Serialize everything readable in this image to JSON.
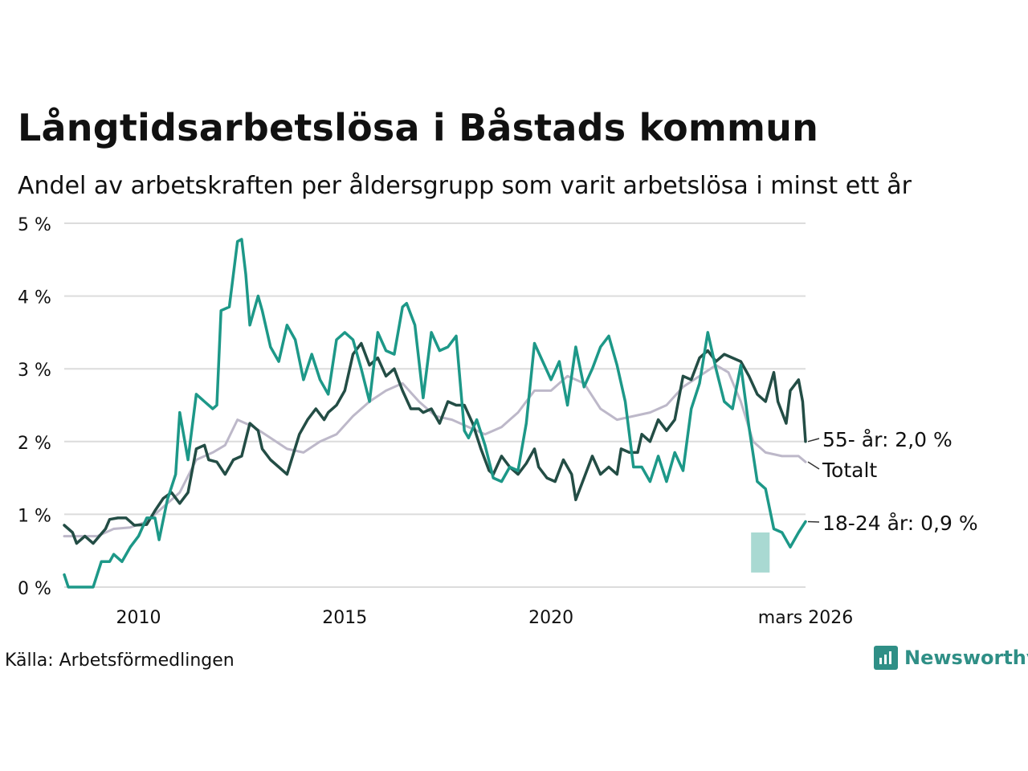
{
  "title": "Långtidsarbetslösa i Båstads kommun",
  "subtitle": "Andel av arbetskraften per åldersgrupp som varit arbetslösa i minst ett år",
  "source": "Källa: Arbetsförmedlingen",
  "brand": "Newsworthy",
  "colors": {
    "age55": "#234d45",
    "total": "#bdb8c9",
    "young": "#1d9888",
    "youngBand": "#93cfc7",
    "grid": "#dcdcdc",
    "brand": "#2f8f86"
  },
  "chart_data": {
    "type": "line",
    "title": "Långtidsarbetslösa i Båstads kommun",
    "ylabel": "",
    "xlabel": "",
    "ylim": [
      0,
      5
    ],
    "xlim": [
      2008.2,
      2026.17
    ],
    "y_ticks": [
      0,
      1,
      2,
      3,
      4,
      5
    ],
    "y_tick_labels": [
      "0 %",
      "1 %",
      "2 %",
      "3 %",
      "4 %",
      "5 %"
    ],
    "x_ticks": [
      2010,
      2015,
      2020,
      2026.17
    ],
    "x_tick_labels": [
      "2010",
      "2015",
      "2020",
      "mars 2026"
    ],
    "end_labels": {
      "age55": "55- år: 2,0 %",
      "total": "Totalt",
      "young": "18-24 år: 0,9 %"
    },
    "series": [
      {
        "name": "55- år",
        "key": "age55",
        "points": [
          [
            2008.2,
            0.85
          ],
          [
            2008.4,
            0.75
          ],
          [
            2008.5,
            0.6
          ],
          [
            2008.7,
            0.7
          ],
          [
            2008.9,
            0.6
          ],
          [
            2009.2,
            0.8
          ],
          [
            2009.3,
            0.93
          ],
          [
            2009.5,
            0.95
          ],
          [
            2009.7,
            0.95
          ],
          [
            2009.9,
            0.85
          ],
          [
            2010.2,
            0.86
          ],
          [
            2010.4,
            1.05
          ],
          [
            2010.6,
            1.22
          ],
          [
            2010.8,
            1.3
          ],
          [
            2011.0,
            1.15
          ],
          [
            2011.2,
            1.3
          ],
          [
            2011.4,
            1.9
          ],
          [
            2011.6,
            1.95
          ],
          [
            2011.7,
            1.75
          ],
          [
            2011.9,
            1.72
          ],
          [
            2012.1,
            1.55
          ],
          [
            2012.3,
            1.75
          ],
          [
            2012.5,
            1.8
          ],
          [
            2012.7,
            2.25
          ],
          [
            2012.9,
            2.15
          ],
          [
            2013.0,
            1.9
          ],
          [
            2013.2,
            1.75
          ],
          [
            2013.4,
            1.65
          ],
          [
            2013.6,
            1.55
          ],
          [
            2013.9,
            2.1
          ],
          [
            2014.1,
            2.3
          ],
          [
            2014.3,
            2.45
          ],
          [
            2014.5,
            2.3
          ],
          [
            2014.6,
            2.4
          ],
          [
            2014.8,
            2.5
          ],
          [
            2015.0,
            2.7
          ],
          [
            2015.2,
            3.2
          ],
          [
            2015.4,
            3.35
          ],
          [
            2015.6,
            3.05
          ],
          [
            2015.8,
            3.15
          ],
          [
            2016.0,
            2.9
          ],
          [
            2016.2,
            3.0
          ],
          [
            2016.4,
            2.7
          ],
          [
            2016.6,
            2.45
          ],
          [
            2016.8,
            2.45
          ],
          [
            2016.9,
            2.4
          ],
          [
            2017.1,
            2.45
          ],
          [
            2017.3,
            2.25
          ],
          [
            2017.5,
            2.55
          ],
          [
            2017.7,
            2.5
          ],
          [
            2017.9,
            2.5
          ],
          [
            2018.1,
            2.25
          ],
          [
            2018.3,
            1.9
          ],
          [
            2018.5,
            1.6
          ],
          [
            2018.6,
            1.55
          ],
          [
            2018.8,
            1.8
          ],
          [
            2019.0,
            1.65
          ],
          [
            2019.2,
            1.55
          ],
          [
            2019.4,
            1.7
          ],
          [
            2019.6,
            1.9
          ],
          [
            2019.7,
            1.65
          ],
          [
            2019.9,
            1.5
          ],
          [
            2020.1,
            1.45
          ],
          [
            2020.3,
            1.75
          ],
          [
            2020.5,
            1.55
          ],
          [
            2020.6,
            1.2
          ],
          [
            2020.8,
            1.5
          ],
          [
            2021.0,
            1.8
          ],
          [
            2021.2,
            1.55
          ],
          [
            2021.4,
            1.65
          ],
          [
            2021.6,
            1.55
          ],
          [
            2021.7,
            1.9
          ],
          [
            2021.9,
            1.85
          ],
          [
            2022.1,
            1.85
          ],
          [
            2022.2,
            2.1
          ],
          [
            2022.4,
            2.0
          ],
          [
            2022.6,
            2.3
          ],
          [
            2022.8,
            2.15
          ],
          [
            2023.0,
            2.3
          ],
          [
            2023.2,
            2.9
          ],
          [
            2023.4,
            2.85
          ],
          [
            2023.6,
            3.15
          ],
          [
            2023.8,
            3.25
          ],
          [
            2024.0,
            3.1
          ],
          [
            2024.2,
            3.2
          ],
          [
            2024.4,
            3.15
          ],
          [
            2024.6,
            3.1
          ],
          [
            2024.8,
            2.9
          ],
          [
            2025.0,
            2.65
          ],
          [
            2025.2,
            2.55
          ],
          [
            2025.4,
            2.95
          ],
          [
            2025.5,
            2.55
          ],
          [
            2025.7,
            2.25
          ],
          [
            2025.8,
            2.7
          ],
          [
            2026.0,
            2.85
          ],
          [
            2026.1,
            2.55
          ],
          [
            2026.17,
            2.0
          ]
        ]
      },
      {
        "name": "Totalt",
        "key": "total",
        "points": [
          [
            2008.2,
            0.7
          ],
          [
            2008.6,
            0.7
          ],
          [
            2009.0,
            0.7
          ],
          [
            2009.4,
            0.8
          ],
          [
            2009.8,
            0.82
          ],
          [
            2010.2,
            0.9
          ],
          [
            2010.6,
            1.1
          ],
          [
            2011.0,
            1.3
          ],
          [
            2011.4,
            1.75
          ],
          [
            2011.8,
            1.85
          ],
          [
            2012.1,
            1.95
          ],
          [
            2012.4,
            2.3
          ],
          [
            2012.8,
            2.2
          ],
          [
            2013.2,
            2.05
          ],
          [
            2013.6,
            1.9
          ],
          [
            2014.0,
            1.85
          ],
          [
            2014.4,
            2.0
          ],
          [
            2014.8,
            2.1
          ],
          [
            2015.2,
            2.35
          ],
          [
            2015.6,
            2.55
          ],
          [
            2016.0,
            2.7
          ],
          [
            2016.4,
            2.8
          ],
          [
            2016.8,
            2.55
          ],
          [
            2017.2,
            2.35
          ],
          [
            2017.6,
            2.3
          ],
          [
            2018.0,
            2.2
          ],
          [
            2018.4,
            2.1
          ],
          [
            2018.8,
            2.2
          ],
          [
            2019.2,
            2.4
          ],
          [
            2019.6,
            2.7
          ],
          [
            2020.0,
            2.7
          ],
          [
            2020.4,
            2.9
          ],
          [
            2020.8,
            2.8
          ],
          [
            2021.2,
            2.45
          ],
          [
            2021.6,
            2.3
          ],
          [
            2022.0,
            2.35
          ],
          [
            2022.4,
            2.4
          ],
          [
            2022.8,
            2.5
          ],
          [
            2023.2,
            2.75
          ],
          [
            2023.6,
            2.9
          ],
          [
            2024.0,
            3.05
          ],
          [
            2024.3,
            2.95
          ],
          [
            2024.6,
            2.55
          ],
          [
            2024.9,
            2.0
          ],
          [
            2025.2,
            1.85
          ],
          [
            2025.6,
            1.8
          ],
          [
            2026.0,
            1.8
          ],
          [
            2026.17,
            1.72
          ]
        ]
      },
      {
        "name": "18-24 år",
        "key": "young",
        "points": [
          [
            2008.2,
            0.17
          ],
          [
            2008.3,
            0.0
          ],
          [
            2008.6,
            0.0
          ],
          [
            2008.9,
            0.0
          ],
          [
            2009.1,
            0.35
          ],
          [
            2009.3,
            0.35
          ],
          [
            2009.4,
            0.45
          ],
          [
            2009.6,
            0.35
          ],
          [
            2009.8,
            0.55
          ],
          [
            2010.0,
            0.7
          ],
          [
            2010.2,
            0.95
          ],
          [
            2010.4,
            0.95
          ],
          [
            2010.5,
            0.65
          ],
          [
            2010.7,
            1.2
          ],
          [
            2010.9,
            1.55
          ],
          [
            2011.0,
            2.4
          ],
          [
            2011.2,
            1.75
          ],
          [
            2011.4,
            2.65
          ],
          [
            2011.6,
            2.55
          ],
          [
            2011.8,
            2.45
          ],
          [
            2011.9,
            2.5
          ],
          [
            2012.0,
            3.8
          ],
          [
            2012.2,
            3.85
          ],
          [
            2012.4,
            4.75
          ],
          [
            2012.5,
            4.78
          ],
          [
            2012.6,
            4.3
          ],
          [
            2012.7,
            3.6
          ],
          [
            2012.9,
            4.0
          ],
          [
            2013.0,
            3.8
          ],
          [
            2013.2,
            3.3
          ],
          [
            2013.4,
            3.1
          ],
          [
            2013.6,
            3.6
          ],
          [
            2013.8,
            3.4
          ],
          [
            2014.0,
            2.85
          ],
          [
            2014.2,
            3.2
          ],
          [
            2014.4,
            2.85
          ],
          [
            2014.6,
            2.65
          ],
          [
            2014.8,
            3.4
          ],
          [
            2015.0,
            3.5
          ],
          [
            2015.2,
            3.4
          ],
          [
            2015.4,
            3.0
          ],
          [
            2015.6,
            2.55
          ],
          [
            2015.8,
            3.5
          ],
          [
            2016.0,
            3.25
          ],
          [
            2016.2,
            3.2
          ],
          [
            2016.4,
            3.85
          ],
          [
            2016.5,
            3.9
          ],
          [
            2016.7,
            3.6
          ],
          [
            2016.9,
            2.6
          ],
          [
            2017.1,
            3.5
          ],
          [
            2017.3,
            3.25
          ],
          [
            2017.5,
            3.3
          ],
          [
            2017.7,
            3.45
          ],
          [
            2017.9,
            2.15
          ],
          [
            2018.0,
            2.05
          ],
          [
            2018.2,
            2.3
          ],
          [
            2018.4,
            1.95
          ],
          [
            2018.6,
            1.5
          ],
          [
            2018.8,
            1.45
          ],
          [
            2019.0,
            1.65
          ],
          [
            2019.2,
            1.6
          ],
          [
            2019.4,
            2.25
          ],
          [
            2019.6,
            3.35
          ],
          [
            2019.8,
            3.1
          ],
          [
            2020.0,
            2.85
          ],
          [
            2020.2,
            3.1
          ],
          [
            2020.4,
            2.5
          ],
          [
            2020.6,
            3.3
          ],
          [
            2020.8,
            2.75
          ],
          [
            2021.0,
            3.0
          ],
          [
            2021.2,
            3.3
          ],
          [
            2021.4,
            3.45
          ],
          [
            2021.6,
            3.05
          ],
          [
            2021.8,
            2.55
          ],
          [
            2022.0,
            1.65
          ],
          [
            2022.2,
            1.65
          ],
          [
            2022.4,
            1.45
          ],
          [
            2022.6,
            1.8
          ],
          [
            2022.8,
            1.45
          ],
          [
            2023.0,
            1.85
          ],
          [
            2023.2,
            1.6
          ],
          [
            2023.4,
            2.45
          ],
          [
            2023.6,
            2.8
          ],
          [
            2023.8,
            3.5
          ],
          [
            2024.0,
            3.0
          ],
          [
            2024.2,
            2.55
          ],
          [
            2024.4,
            2.45
          ],
          [
            2024.6,
            3.05
          ],
          [
            2024.8,
            2.2
          ],
          [
            2025.0,
            1.45
          ],
          [
            2025.2,
            1.35
          ],
          [
            2025.4,
            0.8
          ],
          [
            2025.6,
            0.75
          ],
          [
            2025.8,
            0.55
          ],
          [
            2026.0,
            0.75
          ],
          [
            2026.17,
            0.9
          ]
        ]
      }
    ]
  }
}
